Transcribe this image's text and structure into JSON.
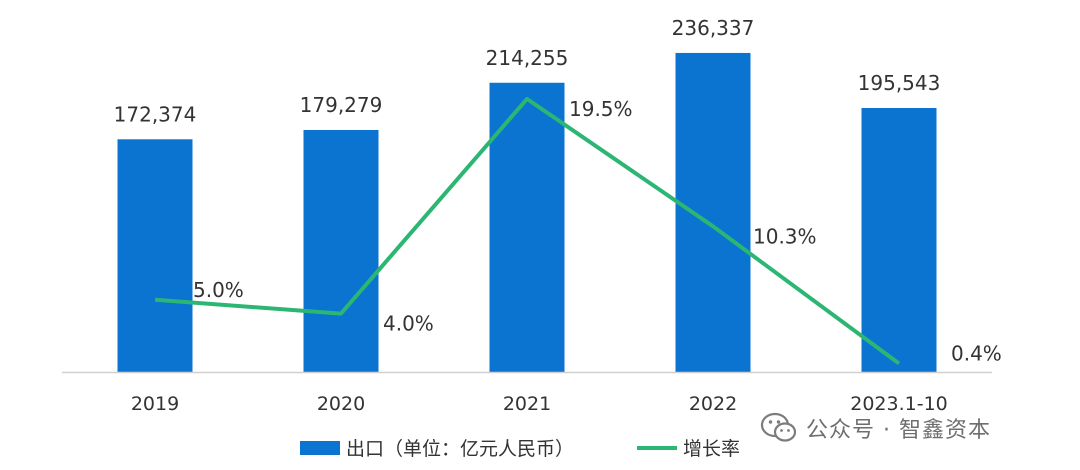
{
  "chart_data": {
    "type": "bar",
    "categories": [
      "2019",
      "2020",
      "2021",
      "2022",
      "2023.1-10"
    ],
    "series": [
      {
        "name": "出口（单位：亿元人民币）",
        "type": "bar",
        "values": [
          172374,
          179279,
          214255,
          236337,
          195543
        ],
        "labels": [
          "172,374",
          "179,279",
          "214,255",
          "236,337",
          "195,543"
        ]
      },
      {
        "name": "增长率",
        "type": "line",
        "values": [
          5.0,
          4.0,
          19.5,
          10.3,
          0.4
        ],
        "labels": [
          "5.0%",
          "4.0%",
          "19.5%",
          "10.3%",
          "0.4%"
        ]
      }
    ],
    "y1lim": [
      0,
      240000
    ],
    "y2lim": [
      0,
      20
    ],
    "grid": false,
    "legend_position": "bottom",
    "colors": {
      "bar": "#0b74d1",
      "line": "#2bb673"
    }
  },
  "watermark": {
    "text": "公众号 · 智鑫资本",
    "icon": "wechat-icon"
  }
}
